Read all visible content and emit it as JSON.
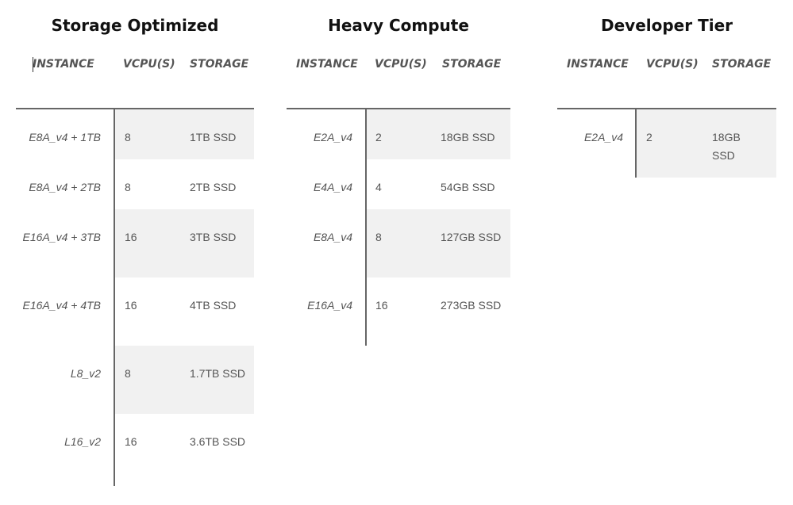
{
  "headers": {
    "instance": "INSTANCE",
    "vcpu": "VCPU(S)",
    "storage": "STORAGE"
  },
  "tables": [
    {
      "title": "Storage Optimized",
      "rows": [
        {
          "instance": "E8A_v4 + 1TB",
          "vcpu": "8",
          "storage": "1TB SSD"
        },
        {
          "instance": "E8A_v4 + 2TB",
          "vcpu": "8",
          "storage": "2TB SSD"
        },
        {
          "instance": "E16A_v4 + 3TB",
          "vcpu": "16",
          "storage": "3TB SSD"
        },
        {
          "instance": "E16A_v4 + 4TB",
          "vcpu": "16",
          "storage": "4TB SSD"
        },
        {
          "instance": "L8_v2",
          "vcpu": "8",
          "storage": "1.7TB SSD"
        },
        {
          "instance": "L16_v2",
          "vcpu": "16",
          "storage": "3.6TB SSD"
        }
      ]
    },
    {
      "title": "Heavy Compute",
      "rows": [
        {
          "instance": "E2A_v4",
          "vcpu": "2",
          "storage": "18GB SSD"
        },
        {
          "instance": "E4A_v4",
          "vcpu": "4",
          "storage": "54GB SSD"
        },
        {
          "instance": "E8A_v4",
          "vcpu": "8",
          "storage": "127GB SSD"
        },
        {
          "instance": "E16A_v4",
          "vcpu": "16",
          "storage": "273GB SSD"
        }
      ]
    },
    {
      "title": "Developer Tier",
      "rows": [
        {
          "instance": "E2A_v4",
          "vcpu": "2",
          "storage": "18GB SSD"
        }
      ]
    }
  ]
}
